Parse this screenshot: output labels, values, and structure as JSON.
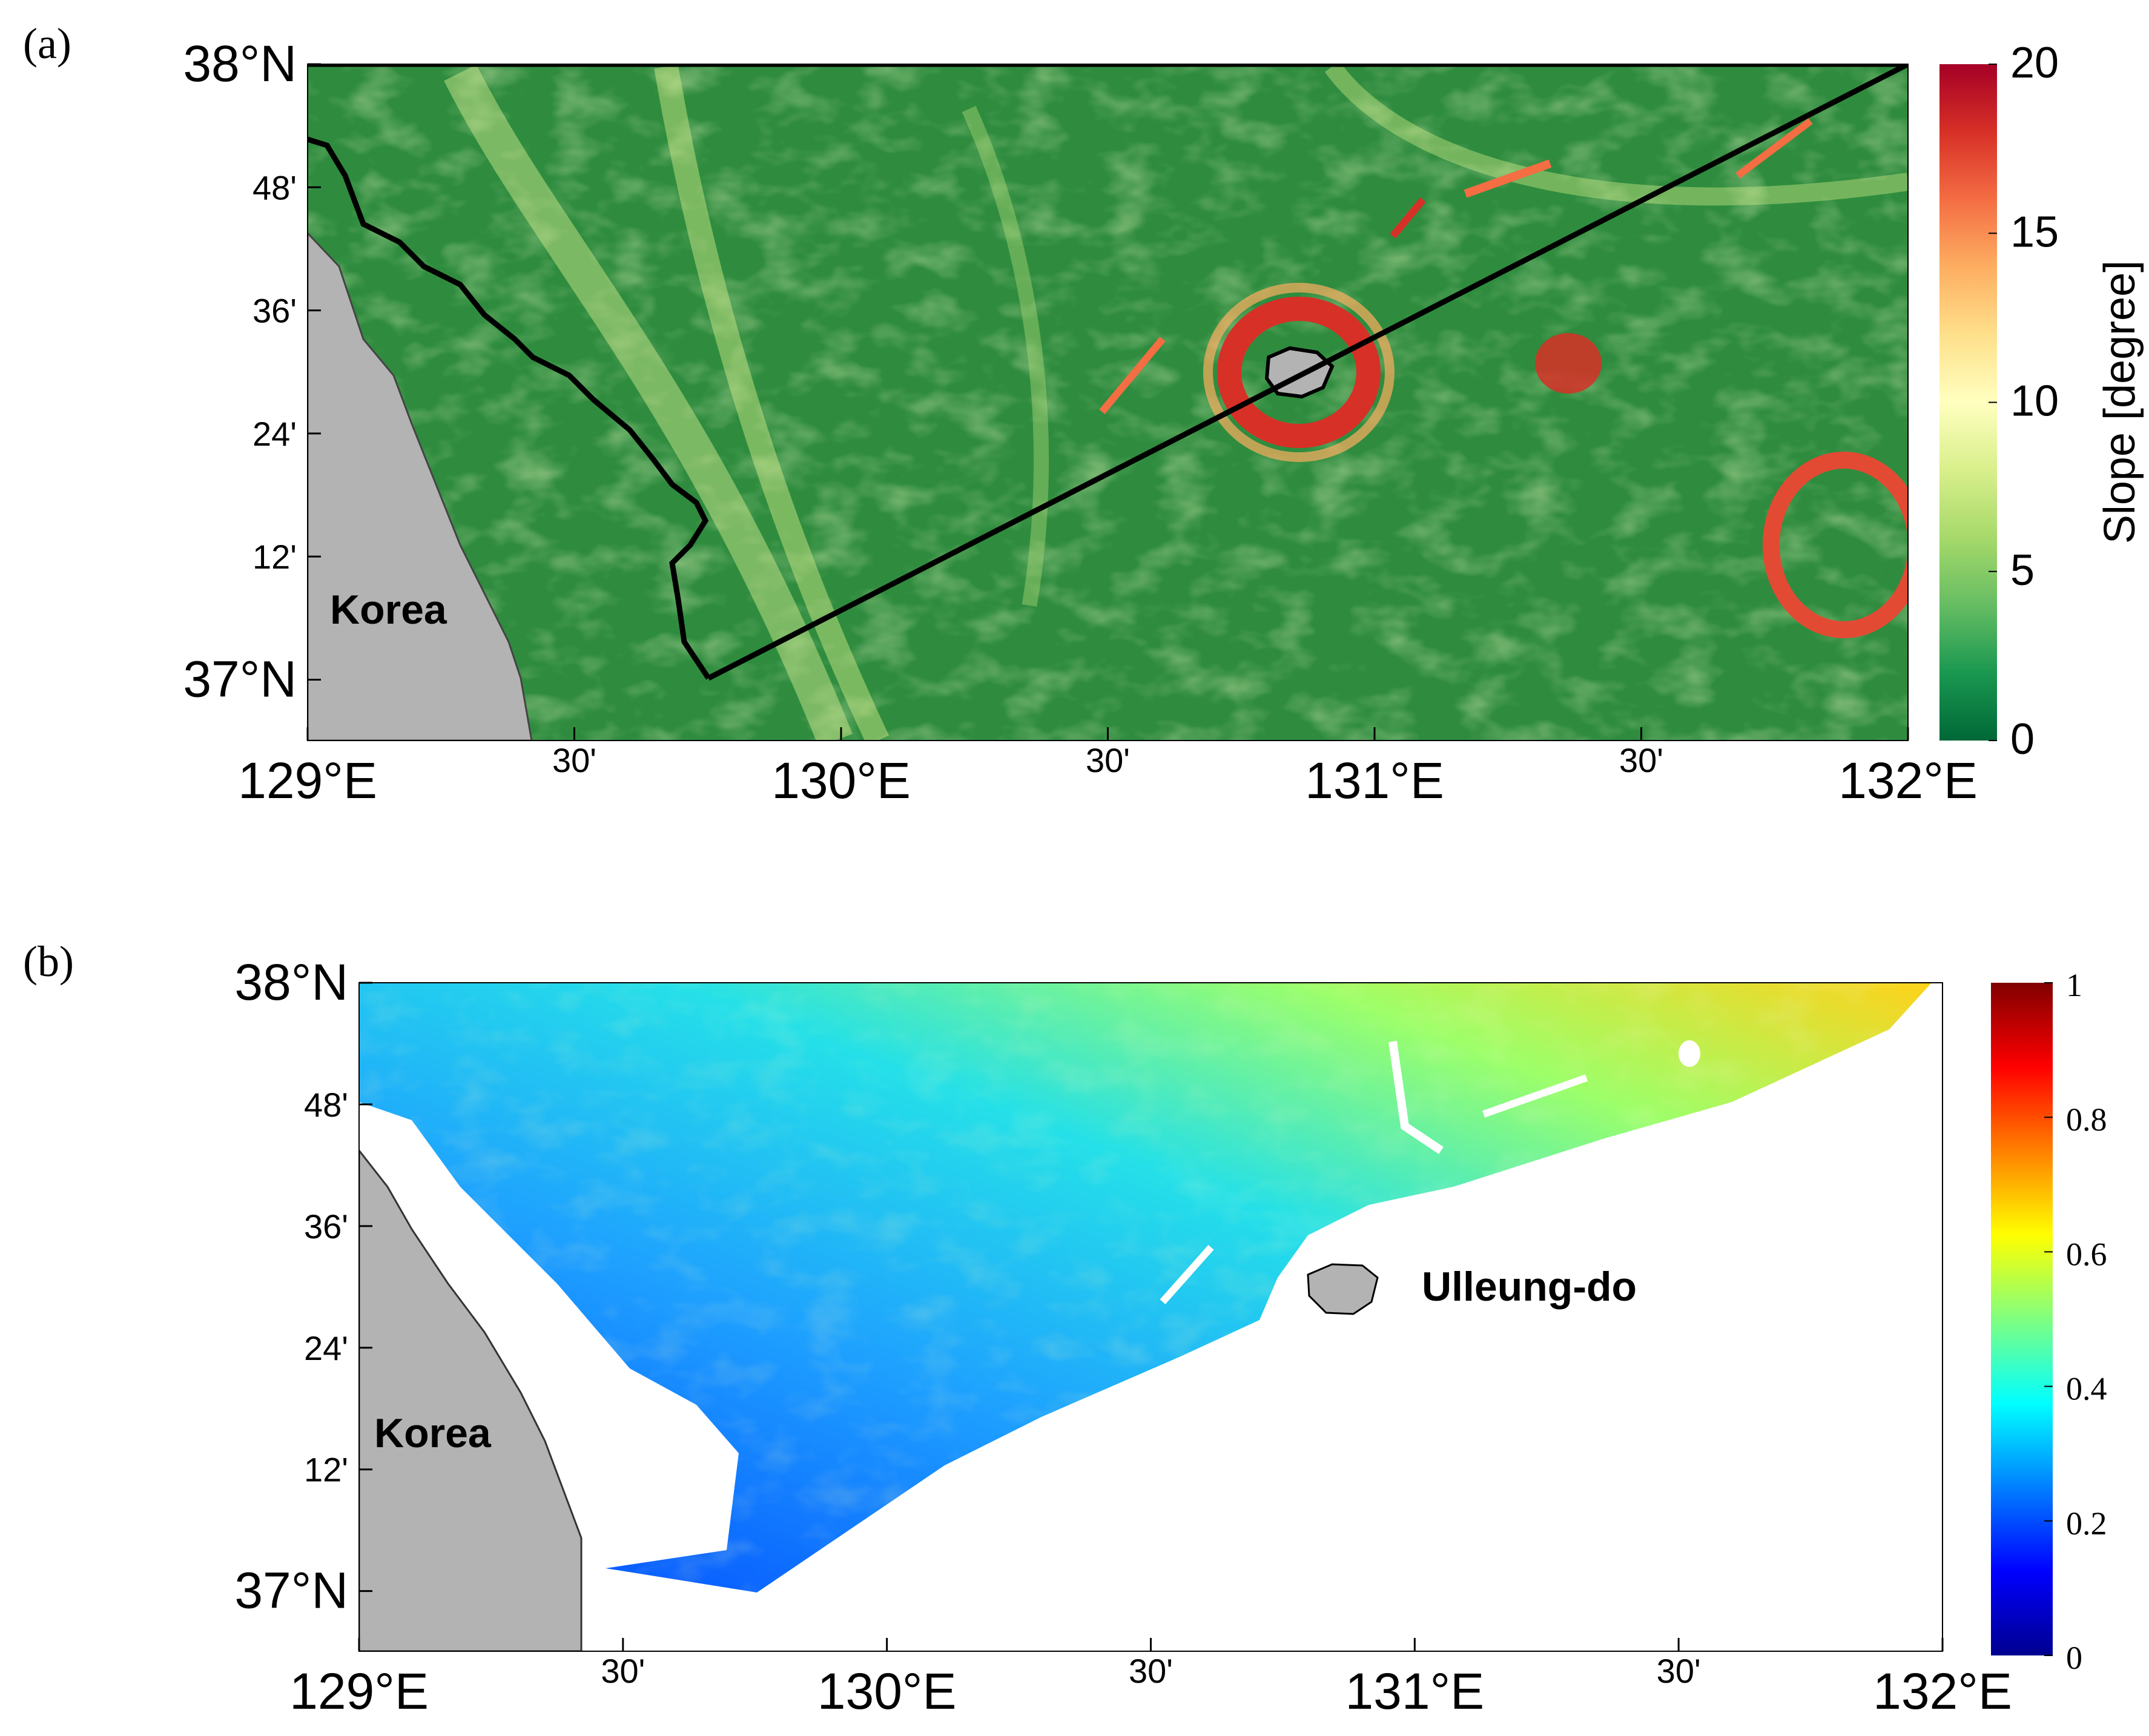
{
  "panels": [
    {
      "id": "a",
      "letter": "(a)",
      "colorbar": {
        "title": "Slope [degree]",
        "ticks": [
          "0",
          "5",
          "10",
          "15",
          "20"
        ],
        "range": [
          0,
          20
        ],
        "colormap": [
          "#006837",
          "#1a9850",
          "#66bd63",
          "#a6d96a",
          "#d9ef8b",
          "#ffffbf",
          "#fee08b",
          "#fdae61",
          "#f46d43",
          "#d73027",
          "#a50026"
        ]
      },
      "x_ticks": [
        {
          "label": "129°E",
          "major": true
        },
        {
          "label": "30'",
          "major": false
        },
        {
          "label": "130°E",
          "major": true
        },
        {
          "label": "30'",
          "major": false
        },
        {
          "label": "131°E",
          "major": true
        },
        {
          "label": "30'",
          "major": false
        },
        {
          "label": "132°E",
          "major": true
        }
      ],
      "y_ticks": [
        {
          "label": "38°N",
          "major": true
        },
        {
          "label": "48'",
          "major": false
        },
        {
          "label": "36'",
          "major": false
        },
        {
          "label": "24'",
          "major": false
        },
        {
          "label": "12'",
          "major": false
        },
        {
          "label": "37°N",
          "major": true
        }
      ],
      "labels": {
        "land": "Korea"
      }
    },
    {
      "id": "b",
      "letter": "(b)",
      "colorbar": {
        "title": "",
        "ticks": [
          "0",
          "0.2",
          "0.4",
          "0.6",
          "0.8",
          "1"
        ],
        "range": [
          0,
          1
        ],
        "colormap": [
          "#00008f",
          "#0000ff",
          "#0080ff",
          "#00ffff",
          "#80ff80",
          "#ffff00",
          "#ff8000",
          "#ff0000",
          "#800000"
        ]
      },
      "x_ticks": [
        {
          "label": "129°E",
          "major": true
        },
        {
          "label": "30'",
          "major": false
        },
        {
          "label": "130°E",
          "major": true
        },
        {
          "label": "30'",
          "major": false
        },
        {
          "label": "131°E",
          "major": true
        },
        {
          "label": "30'",
          "major": false
        },
        {
          "label": "132°E",
          "major": true
        }
      ],
      "y_ticks": [
        {
          "label": "38°N",
          "major": true
        },
        {
          "label": "48'",
          "major": false
        },
        {
          "label": "36'",
          "major": false
        },
        {
          "label": "24'",
          "major": false
        },
        {
          "label": "12'",
          "major": false
        },
        {
          "label": "37°N",
          "major": true
        }
      ],
      "labels": {
        "land": "Korea",
        "island": "Ulleung-do"
      }
    }
  ],
  "colors": {
    "land": "#b3b3b3",
    "sea_green": "#2e8b3e",
    "outline": "#000000"
  }
}
